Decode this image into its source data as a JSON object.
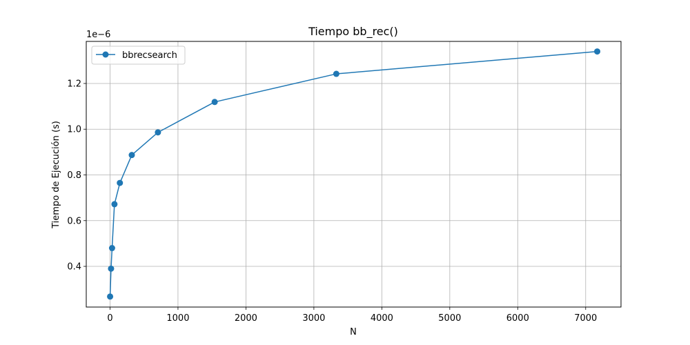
{
  "chart_data": {
    "type": "line",
    "title": "Tiempo bb_rec()",
    "xlabel": "N",
    "ylabel": "Tiempo de Ejecución (s)",
    "y_offset_label": "1e−6",
    "xlim": [
      -350,
      7520
    ],
    "ylim": [
      0.222,
      1.384
    ],
    "x_ticks": [
      0,
      1000,
      2000,
      3000,
      4000,
      5000,
      6000,
      7000
    ],
    "x_tick_labels": [
      "0",
      "1000",
      "2000",
      "3000",
      "4000",
      "5000",
      "6000",
      "7000"
    ],
    "y_ticks": [
      0.4,
      0.6,
      0.8,
      1.0,
      1.2
    ],
    "y_tick_labels": [
      "0.4",
      "0.6",
      "0.8",
      "1.0",
      "1.2"
    ],
    "grid": true,
    "legend_position": "top-left",
    "series": [
      {
        "name": "bbrecsearch",
        "color": "#1f77b4",
        "marker": "circle",
        "x": [
          1,
          15,
          30,
          65,
          145,
          320,
          705,
          1540,
          3330,
          7170
        ],
        "y": [
          0.268,
          0.39,
          0.48,
          0.672,
          0.765,
          0.887,
          0.986,
          1.119,
          1.242,
          1.34
        ]
      }
    ]
  }
}
